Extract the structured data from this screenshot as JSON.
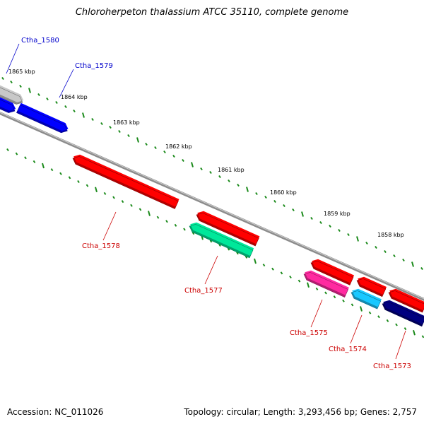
{
  "title": "Chloroherpeton thalassium ATCC 35110, complete genome",
  "footer": {
    "accession": "Accession: NC_011026",
    "summary": "Topology: circular; Length: 3,293,456 bp; Genes: 2,757"
  },
  "scale_labels": [
    "1865 kbp",
    "1864 kbp",
    "1863 kbp",
    "1862 kbp",
    "1861 kbp",
    "1860 kbp",
    "1859 kbp",
    "1858 kbp"
  ],
  "genes": [
    {
      "id": "g1580",
      "label": "Ctha_1580",
      "strand": "forward",
      "color": "#c8c8c8",
      "label_color": "#0000cc"
    },
    {
      "id": "g1580b",
      "label": "",
      "strand": "forward",
      "color": "#0000ff",
      "label_color": "#0000cc"
    },
    {
      "id": "g1579",
      "label": "Ctha_1579",
      "strand": "forward",
      "color": "#0000ff",
      "label_color": "#0000cc"
    },
    {
      "id": "g1578",
      "label": "Ctha_1578",
      "strand": "reverse",
      "color": "#ff0000",
      "label_color": "#cc0000"
    },
    {
      "id": "g1578b",
      "label": "",
      "strand": "reverse",
      "color": "#ff0000",
      "label_color": "#cc0000"
    },
    {
      "id": "g1577",
      "label": "Ctha_1577",
      "strand": "reverse",
      "color": "#00e89a",
      "label_color": "#cc0000"
    },
    {
      "id": "g1576",
      "label": "",
      "strand": "reverse",
      "color": "#ff0000",
      "label_color": "#cc0000"
    },
    {
      "id": "g1575",
      "label": "Ctha_1575",
      "strand": "reverse",
      "color": "#ff2aa0",
      "label_color": "#cc0000"
    },
    {
      "id": "g1575b",
      "label": "",
      "strand": "reverse",
      "color": "#ff0000",
      "label_color": "#cc0000"
    },
    {
      "id": "g1574",
      "label": "Ctha_1574",
      "strand": "reverse",
      "color": "#19c8ff",
      "label_color": "#cc0000"
    },
    {
      "id": "g1573b",
      "label": "",
      "strand": "reverse",
      "color": "#ff0000",
      "label_color": "#cc0000"
    },
    {
      "id": "g1573",
      "label": "Ctha_1573",
      "strand": "reverse",
      "color": "#000080",
      "label_color": "#cc0000"
    }
  ],
  "colors": {
    "backbone": "#8c8c8c",
    "ticks": "#1a8a1a"
  }
}
